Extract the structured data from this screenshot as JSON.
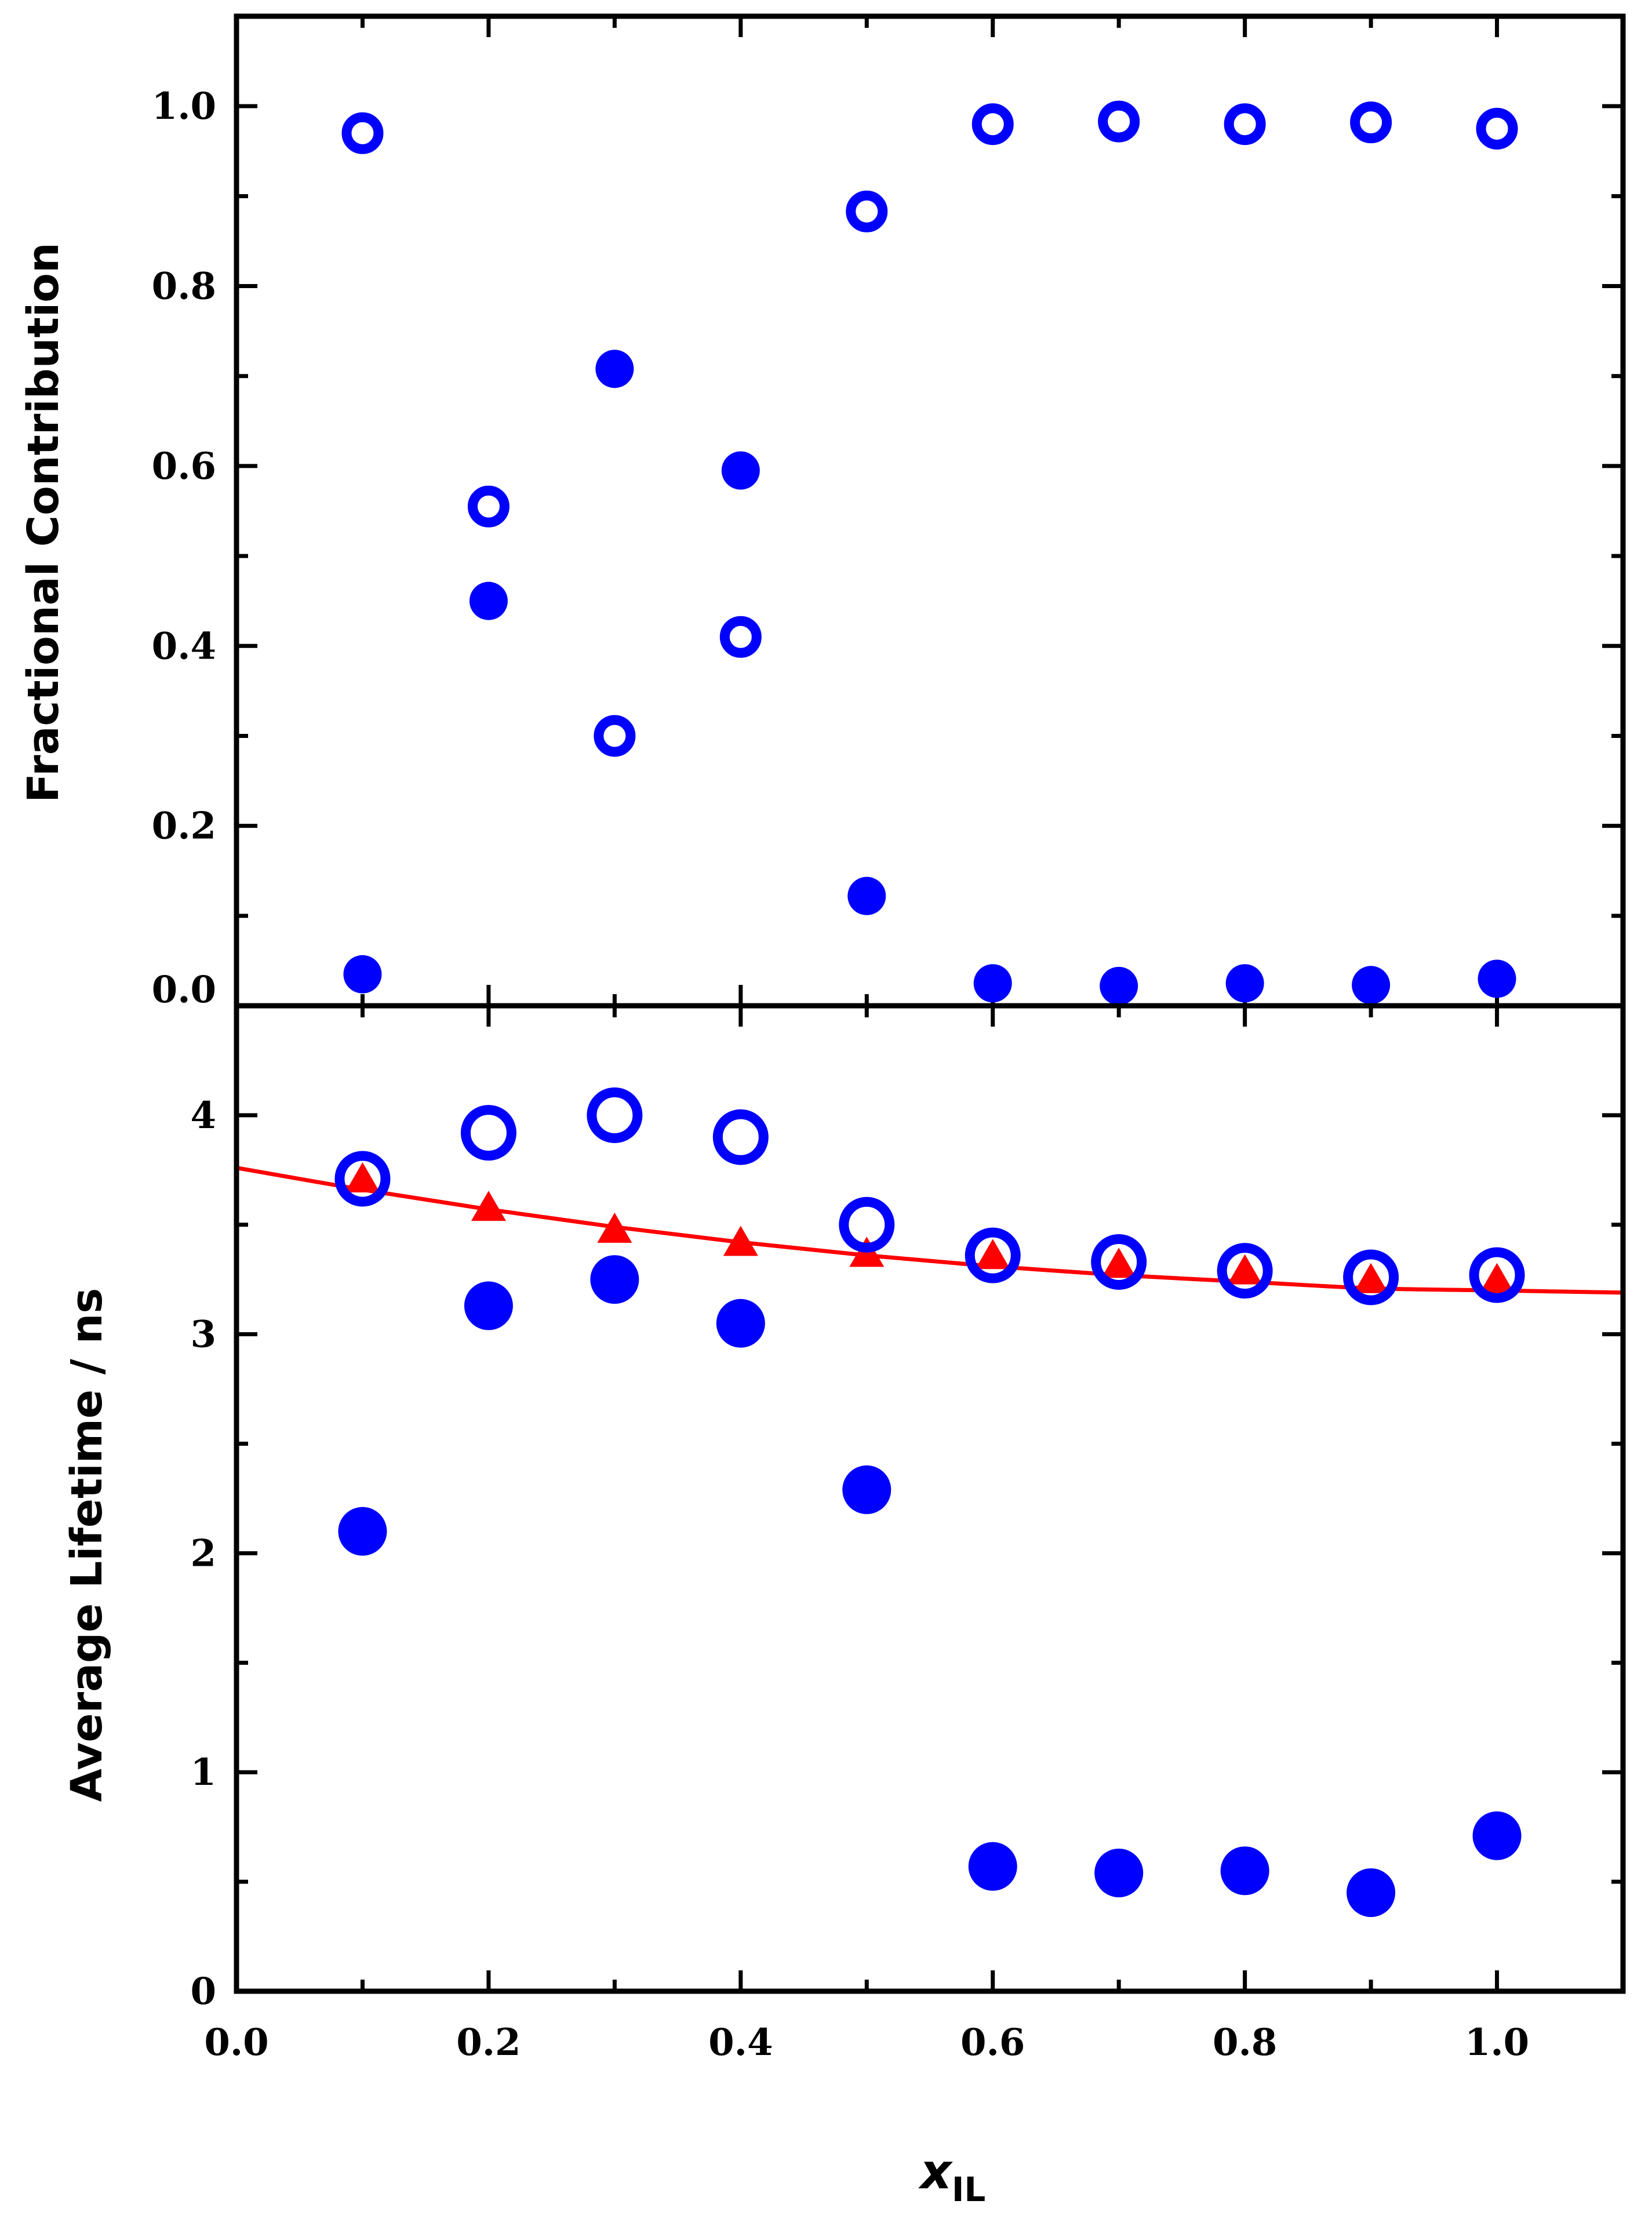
{
  "chart_data": [
    {
      "type": "scatter",
      "panel": "top",
      "title": "",
      "ylabel": "Fractional Contribution",
      "xlabel": "",
      "xlim": [
        0.0,
        1.1
      ],
      "ylim": [
        0.0,
        1.1
      ],
      "yticks": [
        "0.0",
        "0.2",
        "0.4",
        "0.6",
        "0.8",
        "1.0"
      ],
      "ytick_values": [
        0.0,
        0.2,
        0.4,
        0.6,
        0.8,
        1.0
      ],
      "grid": false,
      "x": [
        0.1,
        0.2,
        0.3,
        0.4,
        0.5,
        0.6,
        0.7,
        0.8,
        0.9,
        1.0
      ],
      "series": [
        {
          "name": "open circles",
          "marker": "open-circle",
          "color": "#0000ff",
          "values": [
            0.97,
            0.555,
            0.3,
            0.41,
            0.883,
            0.98,
            0.983,
            0.98,
            0.982,
            0.975
          ]
        },
        {
          "name": "filled circles",
          "marker": "filled-circle",
          "color": "#0000ff",
          "values": [
            0.035,
            0.45,
            0.708,
            0.595,
            0.122,
            0.025,
            0.022,
            0.025,
            0.023,
            0.03
          ]
        }
      ]
    },
    {
      "type": "scatter",
      "panel": "bottom",
      "title": "",
      "ylabel": "Average Lifetime / ns",
      "xlabel": "x",
      "xlabel_subscript": "IL",
      "xlim": [
        0.0,
        1.1
      ],
      "ylim": [
        0.0,
        4.5
      ],
      "yticks": [
        "0",
        "1",
        "2",
        "3",
        "4"
      ],
      "ytick_values": [
        0,
        1,
        2,
        3,
        4
      ],
      "xticks": [
        "0.0",
        "0.2",
        "0.4",
        "0.6",
        "0.8",
        "1.0"
      ],
      "xtick_values": [
        0.0,
        0.2,
        0.4,
        0.6,
        0.8,
        1.0
      ],
      "grid": false,
      "x": [
        0.1,
        0.2,
        0.3,
        0.4,
        0.5,
        0.6,
        0.7,
        0.8,
        0.9,
        1.0
      ],
      "series": [
        {
          "name": "open circles",
          "marker": "open-circle",
          "color": "#0000ff",
          "values": [
            3.71,
            3.92,
            4.0,
            3.9,
            3.5,
            3.36,
            3.33,
            3.29,
            3.26,
            3.27
          ]
        },
        {
          "name": "filled circles",
          "marker": "filled-circle",
          "color": "#0000ff",
          "values": [
            2.1,
            3.13,
            3.25,
            3.05,
            2.29,
            0.57,
            0.54,
            0.55,
            0.45,
            0.71
          ]
        },
        {
          "name": "triangles",
          "marker": "filled-triangle",
          "color": "#ff0000",
          "values": [
            3.7,
            3.57,
            3.47,
            3.41,
            3.36,
            3.35,
            3.31,
            3.28,
            3.24,
            3.24
          ]
        },
        {
          "name": "fit curve",
          "marker": "line",
          "color": "#ff0000",
          "x": [
            0.0,
            0.1,
            0.2,
            0.3,
            0.4,
            0.5,
            0.6,
            0.7,
            0.8,
            0.9,
            1.0,
            1.1
          ],
          "values": [
            3.76,
            3.66,
            3.57,
            3.49,
            3.42,
            3.36,
            3.31,
            3.27,
            3.24,
            3.21,
            3.2,
            3.19
          ]
        }
      ]
    }
  ]
}
